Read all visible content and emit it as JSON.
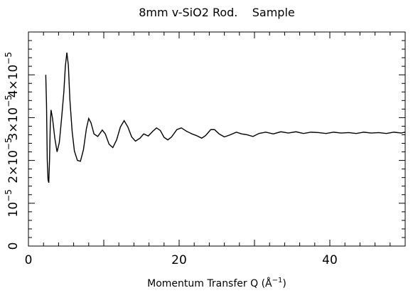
{
  "chart_data": {
    "type": "line",
    "title": "8mm v-SiO2 Rod.    Sample",
    "xlabel": "Momentum Transfer Q (Å",
    "xlabel_sup": "−1",
    "xlabel_close": ")",
    "ylabel": "",
    "xlim": [
      0,
      50
    ],
    "ylim": [
      0,
      5e-05
    ],
    "xticks": [
      {
        "value": 0,
        "label": "0"
      },
      {
        "value": 20,
        "label": "20"
      },
      {
        "value": 40,
        "label": "40"
      }
    ],
    "yticks": [
      {
        "value": 0,
        "label": "0",
        "exp": ""
      },
      {
        "value": 1e-05,
        "label": "10",
        "exp": "−5"
      },
      {
        "value": 2e-05,
        "label": "2×10",
        "exp": "−5"
      },
      {
        "value": 3e-05,
        "label": "3×10",
        "exp": "−5"
      },
      {
        "value": 4e-05,
        "label": "4×10",
        "exp": "−5"
      }
    ],
    "grid": false,
    "series": [
      {
        "color": "#000000",
        "points": [
          [
            2.3,
            4e-05
          ],
          [
            2.4,
            3.3e-05
          ],
          [
            2.5,
            2e-05
          ],
          [
            2.6,
            1.55e-05
          ],
          [
            2.7,
            1.48e-05
          ],
          [
            2.8,
            2e-05
          ],
          [
            2.9,
            2.85e-05
          ],
          [
            3.0,
            3.18e-05
          ],
          [
            3.2,
            2.98e-05
          ],
          [
            3.5,
            2.52e-05
          ],
          [
            3.8,
            2.2e-05
          ],
          [
            4.1,
            2.42e-05
          ],
          [
            4.4,
            2.98e-05
          ],
          [
            4.7,
            3.6e-05
          ],
          [
            4.9,
            4.2e-05
          ],
          [
            5.1,
            4.52e-05
          ],
          [
            5.3,
            4.22e-05
          ],
          [
            5.5,
            3.42e-05
          ],
          [
            5.8,
            2.68e-05
          ],
          [
            6.1,
            2.22e-05
          ],
          [
            6.5,
            2e-05
          ],
          [
            6.9,
            1.98e-05
          ],
          [
            7.3,
            2.25e-05
          ],
          [
            7.7,
            2.75e-05
          ],
          [
            8.0,
            2.98e-05
          ],
          [
            8.3,
            2.88e-05
          ],
          [
            8.7,
            2.62e-05
          ],
          [
            9.2,
            2.56e-05
          ],
          [
            9.8,
            2.71e-05
          ],
          [
            10.2,
            2.62e-05
          ],
          [
            10.7,
            2.38e-05
          ],
          [
            11.2,
            2.3e-05
          ],
          [
            11.7,
            2.48e-05
          ],
          [
            12.2,
            2.78e-05
          ],
          [
            12.7,
            2.93e-05
          ],
          [
            13.2,
            2.78e-05
          ],
          [
            13.7,
            2.55e-05
          ],
          [
            14.2,
            2.45e-05
          ],
          [
            14.8,
            2.52e-05
          ],
          [
            15.3,
            2.62e-05
          ],
          [
            15.9,
            2.57e-05
          ],
          [
            16.5,
            2.68e-05
          ],
          [
            17.0,
            2.76e-05
          ],
          [
            17.5,
            2.7e-05
          ],
          [
            18.0,
            2.54e-05
          ],
          [
            18.5,
            2.48e-05
          ],
          [
            19.0,
            2.55e-05
          ],
          [
            19.7,
            2.72e-05
          ],
          [
            20.3,
            2.76e-05
          ],
          [
            21.0,
            2.68e-05
          ],
          [
            21.7,
            2.62e-05
          ],
          [
            22.3,
            2.58e-05
          ],
          [
            23.0,
            2.52e-05
          ],
          [
            23.5,
            2.58e-05
          ],
          [
            24.2,
            2.72e-05
          ],
          [
            24.7,
            2.72e-05
          ],
          [
            25.3,
            2.62e-05
          ],
          [
            26.0,
            2.55e-05
          ],
          [
            26.8,
            2.6e-05
          ],
          [
            27.6,
            2.66e-05
          ],
          [
            28.3,
            2.62e-05
          ],
          [
            29.0,
            2.6e-05
          ],
          [
            29.8,
            2.56e-05
          ],
          [
            30.6,
            2.63e-05
          ],
          [
            31.5,
            2.66e-05
          ],
          [
            32.5,
            2.62e-05
          ],
          [
            33.5,
            2.67e-05
          ],
          [
            34.5,
            2.64e-05
          ],
          [
            35.5,
            2.67e-05
          ],
          [
            36.5,
            2.63e-05
          ],
          [
            37.5,
            2.66e-05
          ],
          [
            38.5,
            2.65e-05
          ],
          [
            39.5,
            2.63e-05
          ],
          [
            40.5,
            2.66e-05
          ],
          [
            41.5,
            2.64e-05
          ],
          [
            42.5,
            2.65e-05
          ],
          [
            43.5,
            2.63e-05
          ],
          [
            44.5,
            2.66e-05
          ],
          [
            45.5,
            2.64e-05
          ],
          [
            46.5,
            2.65e-05
          ],
          [
            47.5,
            2.63e-05
          ],
          [
            48.5,
            2.66e-05
          ],
          [
            49.5,
            2.64e-05
          ],
          [
            50.0,
            2.66e-05
          ]
        ]
      }
    ]
  }
}
